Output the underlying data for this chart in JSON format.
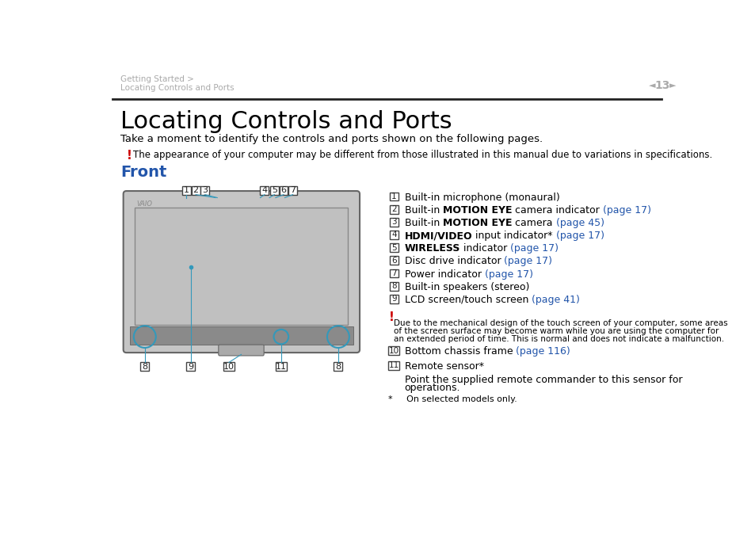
{
  "page_title": "Locating Controls and Ports",
  "subtitle": "Take a moment to identify the controls and ports shown on the following pages.",
  "warning_text": "The appearance of your computer may be different from those illustrated in this manual due to variations in specifications.",
  "section_title": "Front",
  "header_breadcrumb1": "Getting Started >",
  "header_breadcrumb2": "Locating Controls and Ports",
  "page_number": "13",
  "items": [
    {
      "num": "1",
      "plain": "Built-in microphone (monaural)",
      "bold_word": "",
      "link": ""
    },
    {
      "num": "2",
      "plain_pre": "Built-in ",
      "bold_word": "MOTION EYE",
      "plain_post": " camera indicator ",
      "link": "(page 17)"
    },
    {
      "num": "3",
      "plain_pre": "Built-in ",
      "bold_word": "MOTION EYE",
      "plain_post": " camera ",
      "link": "(page 45)"
    },
    {
      "num": "4",
      "plain_pre": "",
      "bold_word": "HDMI/VIDEO",
      "plain_post": " input indicator* ",
      "link": "(page 17)"
    },
    {
      "num": "5",
      "plain_pre": "",
      "bold_word": "WIRELESS",
      "plain_post": " indicator ",
      "link": "(page 17)"
    },
    {
      "num": "6",
      "plain_pre": "Disc drive indicator ",
      "bold_word": "",
      "plain_post": "",
      "link": "(page 17)"
    },
    {
      "num": "7",
      "plain_pre": "Power indicator ",
      "bold_word": "",
      "plain_post": "",
      "link": "(page 17)"
    },
    {
      "num": "8",
      "plain": "Built-in speakers (stereo)",
      "bold_word": "",
      "link": ""
    },
    {
      "num": "9",
      "plain_pre": "LCD screen/touch screen ",
      "bold_word": "",
      "plain_post": "",
      "link": "(page 41)"
    }
  ],
  "warning2_line1": "Due to the mechanical design of the touch screen of your computer, some areas",
  "warning2_line2": "of the screen surface may become warm while you are using the computer for",
  "warning2_line3": "an extended period of time. This is normal and does not indicate a malfunction.",
  "item10_plain": "Bottom chassis frame ",
  "item10_link": "(page 116)",
  "item11_plain": "Remote sensor",
  "item11_super": "*",
  "remote_line1": "Point the supplied remote commander to this sensor for",
  "remote_line2": "operations.",
  "footnote": "*     On selected models only.",
  "bg_color": "#ffffff",
  "text_color": "#000000",
  "link_color": "#2255aa",
  "section_color": "#2255aa",
  "header_color": "#aaaaaa",
  "red_color": "#cc0000",
  "monitor_body_color": "#c5c5c5",
  "monitor_edge_color": "#666666",
  "screen_color": "#c0c0c0",
  "bottom_bar_color": "#999999",
  "cyan_color": "#3399bb"
}
